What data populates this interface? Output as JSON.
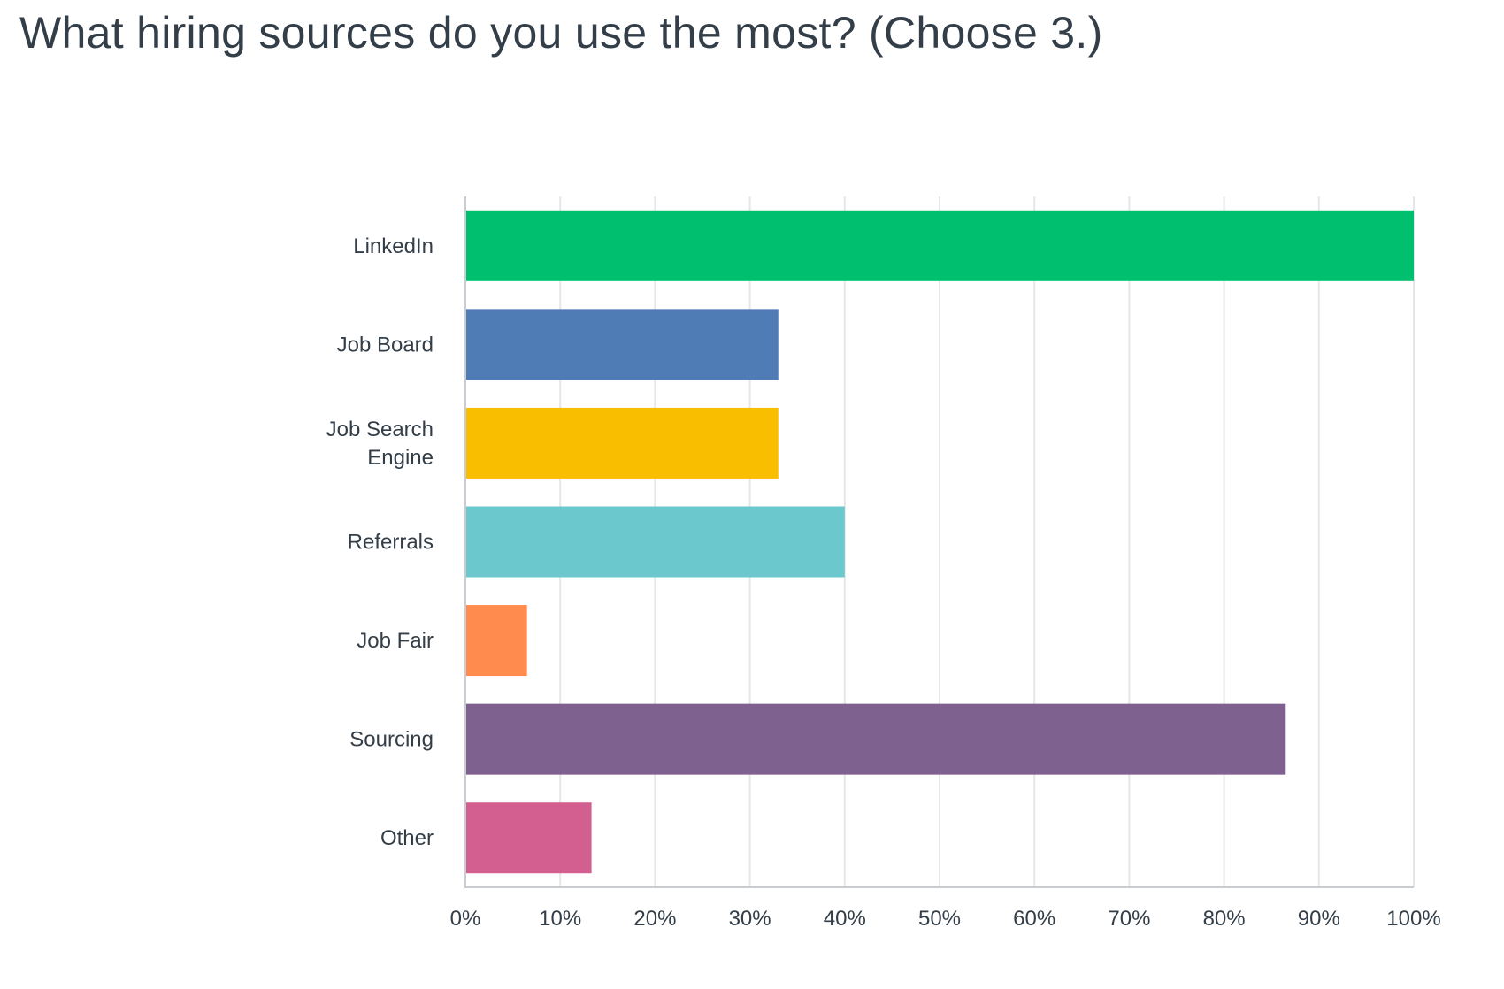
{
  "chart_data": {
    "type": "bar",
    "orientation": "horizontal",
    "title": "What hiring sources do you use the most? (Choose 3.)",
    "categories": [
      "LinkedIn",
      "Job Board",
      "Job Search Engine",
      "Referrals",
      "Job Fair",
      "Sourcing",
      "Other"
    ],
    "category_lines": [
      [
        "LinkedIn"
      ],
      [
        "Job Board"
      ],
      [
        "Job Search",
        "Engine"
      ],
      [
        "Referrals"
      ],
      [
        "Job Fair"
      ],
      [
        "Sourcing"
      ],
      [
        "Other"
      ]
    ],
    "values": [
      100,
      33,
      33,
      40,
      6.5,
      86.5,
      13.3
    ],
    "colors": [
      "#00bf6f",
      "#507cb6",
      "#f9be00",
      "#6bc8cd",
      "#ff8b4f",
      "#7f6190",
      "#d25f90"
    ],
    "xlim": [
      0,
      100
    ],
    "ticks": [
      "0%",
      "10%",
      "20%",
      "30%",
      "40%",
      "50%",
      "60%",
      "70%",
      "80%",
      "90%",
      "100%"
    ],
    "grid": true,
    "xlabel": "",
    "ylabel": ""
  }
}
